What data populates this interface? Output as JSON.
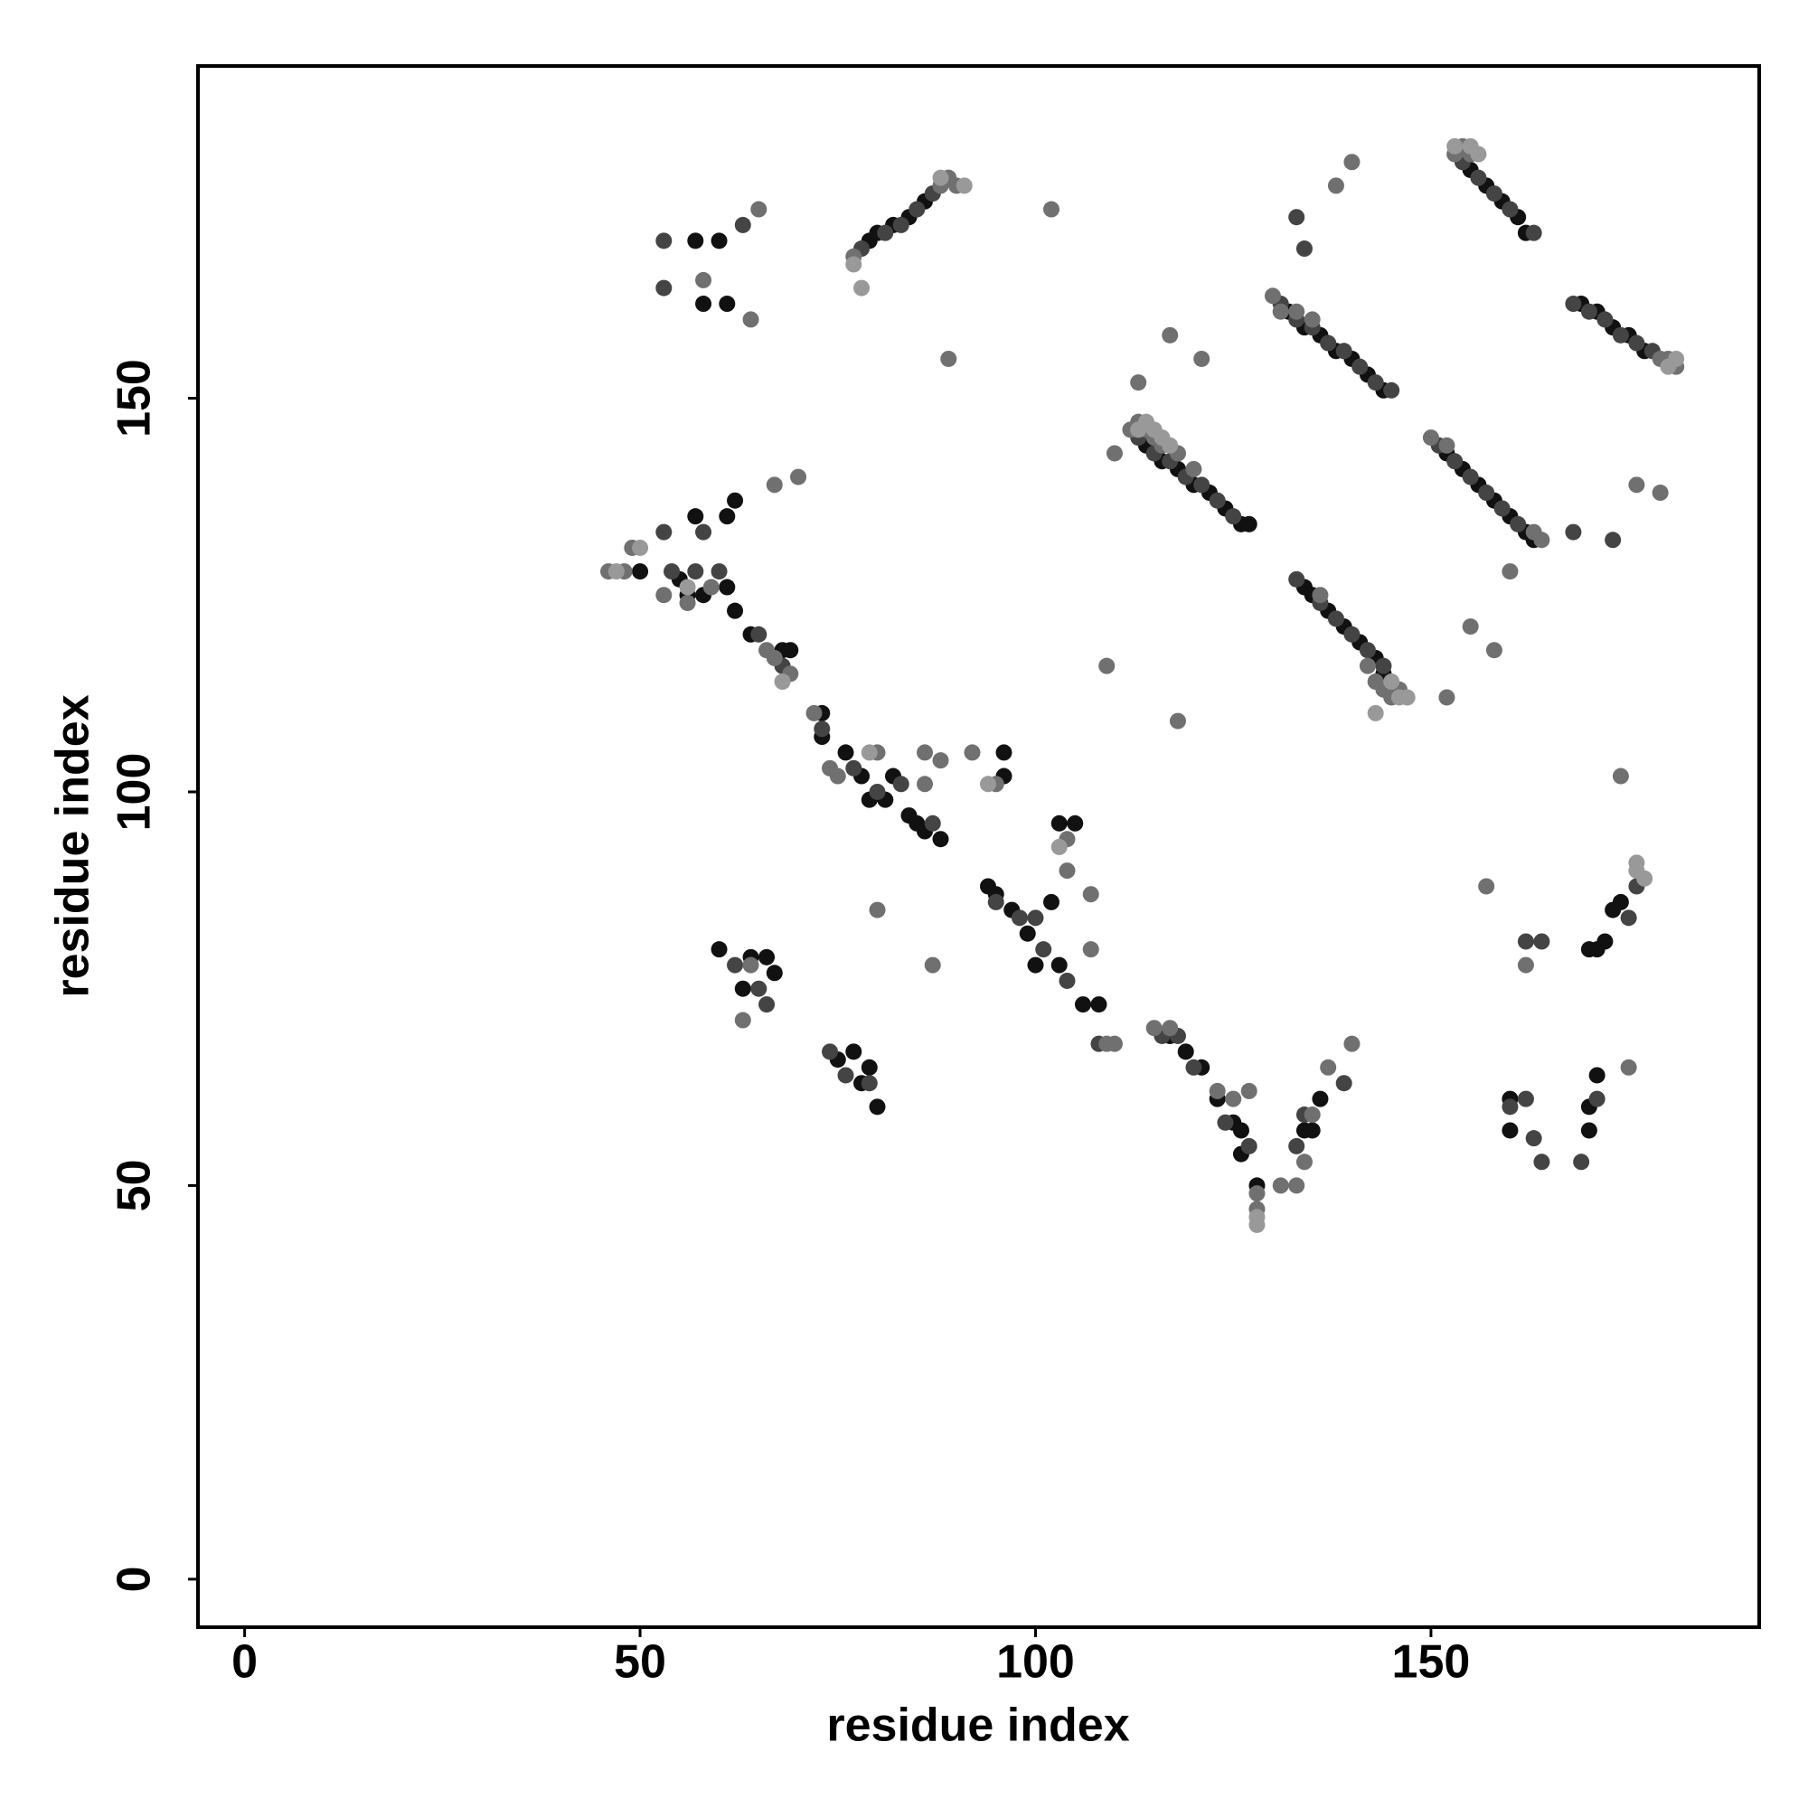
{
  "chart_data": {
    "type": "scatter",
    "x_label": "residue index",
    "y_label": "residue index",
    "xlim": [
      -5.9,
      191.5
    ],
    "ylim": [
      -6.1,
      192.2
    ],
    "xticks": [
      0,
      50,
      100,
      150
    ],
    "yticks": [
      0,
      50,
      100,
      150
    ],
    "series": [
      {
        "color": "#111111",
        "x": [
          114,
          116,
          118,
          120,
          122,
          124,
          126,
          127,
          132,
          134,
          136,
          138,
          140,
          142,
          144,
          134,
          135,
          137,
          139,
          141,
          143,
          144,
          152,
          154,
          156,
          158,
          160,
          162,
          163,
          155,
          157,
          159,
          161,
          162,
          169,
          171,
          173,
          175,
          177,
          79,
          80,
          82,
          84,
          86,
          50,
          55,
          56,
          58,
          61,
          62,
          64,
          68,
          69,
          73,
          73,
          76,
          78,
          79,
          81,
          82,
          84,
          85,
          86,
          88,
          96,
          96,
          94,
          95,
          97,
          99,
          100,
          102,
          103,
          103,
          105,
          106,
          108,
          117,
          119,
          121,
          123,
          125,
          126,
          126,
          128,
          134,
          135,
          136,
          60,
          64,
          67,
          66,
          63,
          75,
          77,
          79,
          78,
          80,
          57,
          58,
          60,
          61,
          62,
          61,
          57,
          171,
          172,
          173,
          174,
          170,
          160,
          170,
          170,
          160,
          171
        ],
        "y": [
          144,
          142,
          141,
          139,
          138,
          136,
          134,
          134,
          161,
          159,
          158,
          156,
          155,
          153,
          151,
          126,
          125,
          123,
          121,
          119,
          117,
          115,
          143,
          141,
          139,
          137,
          135,
          133,
          132,
          179,
          177,
          175,
          173,
          171,
          162,
          161,
          159,
          158,
          156,
          170,
          171,
          172,
          173,
          175,
          128,
          127,
          125,
          125,
          126,
          123,
          120,
          118,
          118,
          110,
          107,
          105,
          102,
          99,
          99,
          102,
          97,
          96,
          95,
          94,
          105,
          102,
          88,
          87,
          85,
          82,
          78,
          86,
          78,
          96,
          96,
          73,
          73,
          69,
          67,
          65,
          61,
          58,
          57,
          54,
          50,
          57,
          57,
          61,
          80,
          79,
          77,
          79,
          75,
          66,
          67,
          65,
          63,
          60,
          170,
          162,
          170,
          162,
          137,
          135,
          135,
          80,
          81,
          85,
          86,
          80,
          57,
          57,
          60,
          61,
          64
        ]
      },
      {
        "color": "#444444",
        "x": [
          113,
          115,
          117,
          119,
          121,
          123,
          125,
          131,
          133,
          135,
          137,
          139,
          141,
          143,
          145,
          133,
          136,
          138,
          140,
          142,
          144,
          151,
          153,
          155,
          157,
          159,
          161,
          154,
          156,
          158,
          160,
          163,
          168,
          170,
          172,
          174,
          176,
          178,
          78,
          81,
          83,
          85,
          87,
          53,
          54,
          57,
          58,
          60,
          65,
          68,
          73,
          77,
          80,
          83,
          87,
          95,
          98,
          100,
          101,
          104,
          108,
          116,
          118,
          120,
          124,
          127,
          133,
          139,
          134,
          53,
          53,
          63,
          133,
          134,
          62,
          65,
          66,
          74,
          76,
          79,
          160,
          162,
          163,
          164,
          169,
          171,
          162,
          164,
          168,
          173,
          176,
          175
        ],
        "y": [
          145,
          143,
          142,
          140,
          139,
          137,
          135,
          162,
          160,
          159,
          157,
          156,
          154,
          152,
          151,
          127,
          124,
          122,
          120,
          118,
          116,
          144,
          142,
          140,
          138,
          136,
          134,
          180,
          178,
          176,
          174,
          171,
          162,
          161,
          160,
          158,
          157,
          156,
          169,
          171,
          172,
          174,
          176,
          133,
          128,
          128,
          133,
          128,
          120,
          116,
          108,
          103,
          100,
          101,
          96,
          86,
          84,
          84,
          80,
          76,
          68,
          69,
          69,
          65,
          58,
          55,
          55,
          63,
          59,
          170,
          164,
          172,
          173,
          169,
          78,
          75,
          73,
          67,
          64,
          63,
          60,
          61,
          56,
          53,
          53,
          61,
          81,
          81,
          133,
          132,
          88,
          84
        ]
      },
      {
        "color": "#707070",
        "x": [
          112,
          113,
          114,
          115,
          116,
          118,
          120,
          130,
          131,
          133,
          135,
          136,
          142,
          143,
          144,
          145,
          146,
          150,
          152,
          163,
          164,
          153,
          154,
          155,
          179,
          180,
          181,
          77,
          88,
          89,
          90,
          46,
          48,
          49,
          53,
          56,
          59,
          66,
          67,
          69,
          72,
          74,
          75,
          80,
          86,
          86,
          92,
          95,
          104,
          104,
          107,
          107,
          109,
          110,
          115,
          117,
          123,
          125,
          127,
          128,
          128,
          131,
          133,
          134,
          135,
          137,
          140,
          65,
          64,
          89,
          102,
          140,
          138,
          110,
          109,
          118,
          117,
          121,
          113,
          70,
          67,
          58,
          88,
          87,
          80,
          152,
          155,
          157,
          160,
          162,
          175,
          174,
          176,
          179,
          158,
          63,
          64
        ],
        "y": [
          146,
          147,
          146,
          145,
          144,
          143,
          141,
          163,
          161,
          161,
          160,
          125,
          116,
          114,
          113,
          112,
          113,
          145,
          144,
          133,
          132,
          181,
          182,
          181,
          155,
          155,
          154,
          168,
          177,
          178,
          177,
          128,
          128,
          131,
          125,
          124,
          126,
          118,
          117,
          115,
          110,
          103,
          102,
          105,
          105,
          101,
          105,
          101,
          94,
          90,
          80,
          87,
          68,
          68,
          70,
          70,
          62,
          61,
          62,
          47,
          49,
          50,
          50,
          53,
          59,
          65,
          68,
          174,
          160,
          155,
          174,
          180,
          177,
          143,
          116,
          109,
          158,
          155,
          152,
          140,
          139,
          165,
          104,
          78,
          85,
          112,
          121,
          88,
          128,
          78,
          65,
          102,
          139,
          138,
          118,
          71,
          78
        ]
      },
      {
        "color": "#999999",
        "x": [
          113,
          114,
          115,
          116,
          117,
          145,
          146,
          147,
          143,
          153,
          155,
          156,
          180,
          181,
          77,
          78,
          88,
          91,
          47,
          50,
          56,
          68,
          79,
          94,
          103,
          128,
          128,
          176,
          176,
          177
        ],
        "y": [
          146,
          147,
          146,
          145,
          144,
          114,
          112,
          112,
          110,
          182,
          182,
          181,
          154,
          155,
          167,
          164,
          178,
          177,
          128,
          131,
          126,
          114,
          105,
          101,
          93,
          46,
          45,
          90,
          91,
          89
        ]
      }
    ]
  }
}
